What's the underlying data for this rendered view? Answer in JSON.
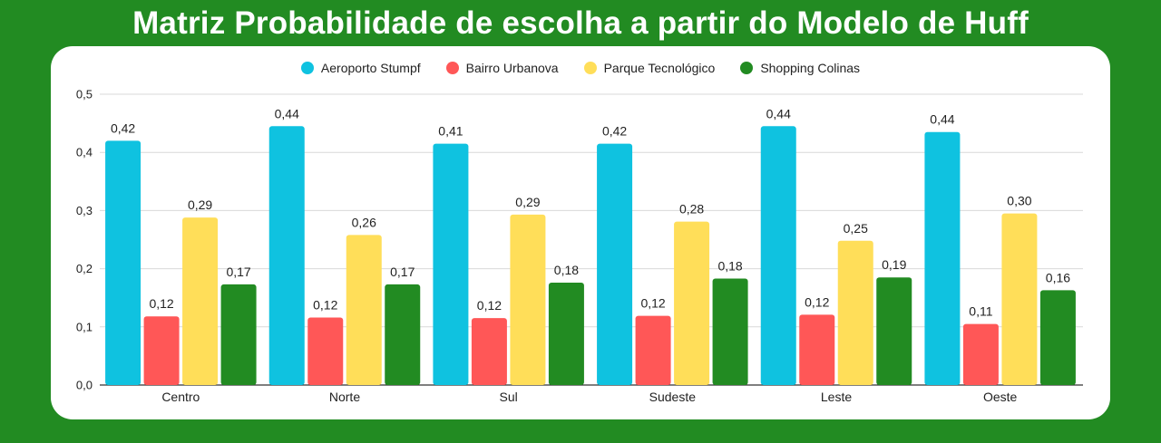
{
  "title": "Matriz Probabilidade de escolha a partir do Modelo de Huff",
  "colors": {
    "background": "#228b22",
    "card": "#ffffff",
    "gridline": "#d9d9d9"
  },
  "chart_data": {
    "type": "bar",
    "title": "Matriz Probabilidade de escolha a partir do Modelo de Huff",
    "xlabel": "",
    "ylabel": "",
    "categories": [
      "Centro",
      "Norte",
      "Sul",
      "Sudeste",
      "Leste",
      "Oeste"
    ],
    "ylim": [
      0,
      0.5
    ],
    "yticks": [
      "0,0",
      "0,1",
      "0,2",
      "0,3",
      "0,4",
      "0,5"
    ],
    "grid": true,
    "legend_position": "top-center",
    "series": [
      {
        "name": "Aeroporto Stumpf",
        "color": "#0fc2e0",
        "values": [
          0.42,
          0.445,
          0.415,
          0.415,
          0.445,
          0.435
        ],
        "labels": [
          "0,42",
          "0,44",
          "0,41",
          "0,42",
          "0,44",
          "0,44"
        ]
      },
      {
        "name": "Bairro Urbanova",
        "color": "#ff5757",
        "values": [
          0.118,
          0.116,
          0.115,
          0.119,
          0.121,
          0.105
        ],
        "labels": [
          "0,12",
          "0,12",
          "0,12",
          "0,12",
          "0,12",
          "0,11"
        ]
      },
      {
        "name": "Parque Tecnológico",
        "color": "#ffde59",
        "values": [
          0.288,
          0.258,
          0.293,
          0.281,
          0.248,
          0.295
        ],
        "labels": [
          "0,29",
          "0,26",
          "0,29",
          "0,28",
          "0,25",
          "0,30"
        ]
      },
      {
        "name": "Shopping Colinas",
        "color": "#228b22",
        "values": [
          0.173,
          0.173,
          0.176,
          0.183,
          0.185,
          0.163
        ],
        "labels": [
          "0,17",
          "0,17",
          "0,18",
          "0,18",
          "0,19",
          "0,16"
        ]
      }
    ]
  }
}
